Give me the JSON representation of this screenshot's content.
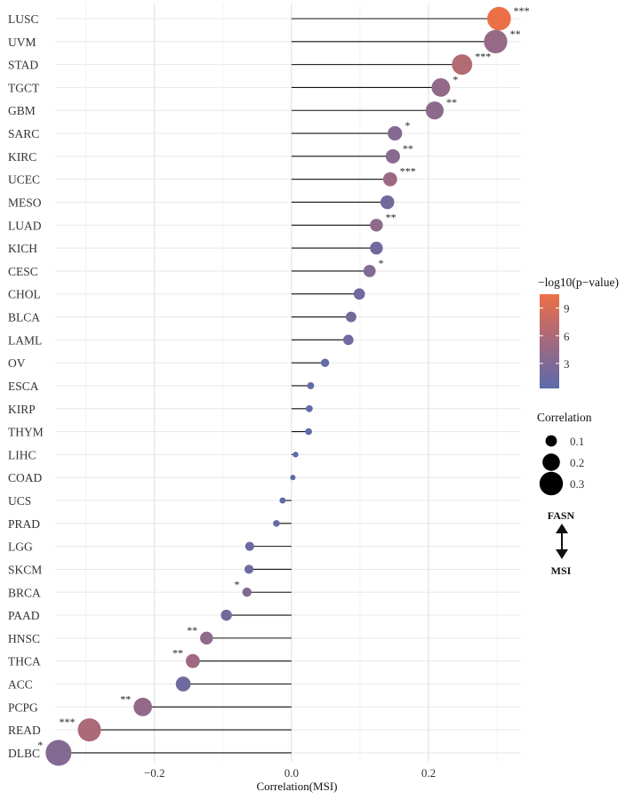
{
  "chart_data": {
    "type": "scatter",
    "subtype": "lollipop",
    "xlabel": "Correlation(MSI)",
    "ylabel": "",
    "xlim": [
      -0.345,
      0.335
    ],
    "xticks": [
      -0.2,
      0.0,
      0.2
    ],
    "xtick_labels": [
      "−0.2",
      "0.0",
      "0.2"
    ],
    "grid": true,
    "categories": [
      "LUSC",
      "UVM",
      "STAD",
      "TGCT",
      "GBM",
      "SARC",
      "KIRC",
      "UCEC",
      "MESO",
      "LUAD",
      "KICH",
      "CESC",
      "CHOL",
      "BLCA",
      "LAML",
      "OV",
      "ESCA",
      "KIRP",
      "THYM",
      "LIHC",
      "COAD",
      "UCS",
      "PRAD",
      "LGG",
      "SKCM",
      "BRCA",
      "PAAD",
      "HNSC",
      "THCA",
      "ACC",
      "PCPG",
      "READ",
      "DLBC"
    ],
    "correlation": [
      0.303,
      0.298,
      0.249,
      0.218,
      0.209,
      0.151,
      0.148,
      0.144,
      0.14,
      0.124,
      0.124,
      0.114,
      0.099,
      0.087,
      0.083,
      0.049,
      0.028,
      0.026,
      0.025,
      0.006,
      0.002,
      -0.013,
      -0.022,
      -0.061,
      -0.062,
      -0.065,
      -0.095,
      -0.124,
      -0.144,
      -0.158,
      -0.217,
      -0.295,
      -0.34
    ],
    "neg_log10_p": [
      10.3,
      4.5,
      6.5,
      4.2,
      3.8,
      3.2,
      3.5,
      4.8,
      2.0,
      4.0,
      1.8,
      3.0,
      1.8,
      2.2,
      1.8,
      1.0,
      0.9,
      0.8,
      0.8,
      0.4,
      0.3,
      0.5,
      1.0,
      1.6,
      1.6,
      3.0,
      2.0,
      4.0,
      5.2,
      1.7,
      4.3,
      6.0,
      3.2
    ],
    "significance": [
      "***",
      "**",
      "***",
      "*",
      "**",
      "*",
      "**",
      "***",
      "",
      "**",
      "",
      "*",
      "",
      "",
      "",
      "",
      "",
      "",
      "",
      "",
      "",
      "",
      "",
      "",
      "",
      "*",
      "",
      "**",
      "**",
      "",
      "**",
      "***",
      "*"
    ],
    "color_legend": {
      "title": "−log10(p−value)",
      "ticks": [
        "9",
        "6",
        "3"
      ],
      "tick_values": [
        9,
        6,
        3
      ],
      "range": [
        0.3,
        10.5
      ],
      "low_color": "#5b6bab",
      "mid_color": "#a3697f",
      "high_color": "#ee7046"
    },
    "size_legend": {
      "title": "Correlation",
      "labels": [
        "0.1",
        "0.2",
        "0.3"
      ],
      "values": [
        0.1,
        0.2,
        0.3
      ]
    },
    "direction_indicator": {
      "top": "FASN",
      "bottom": "MSI"
    },
    "legend_position": "right"
  }
}
